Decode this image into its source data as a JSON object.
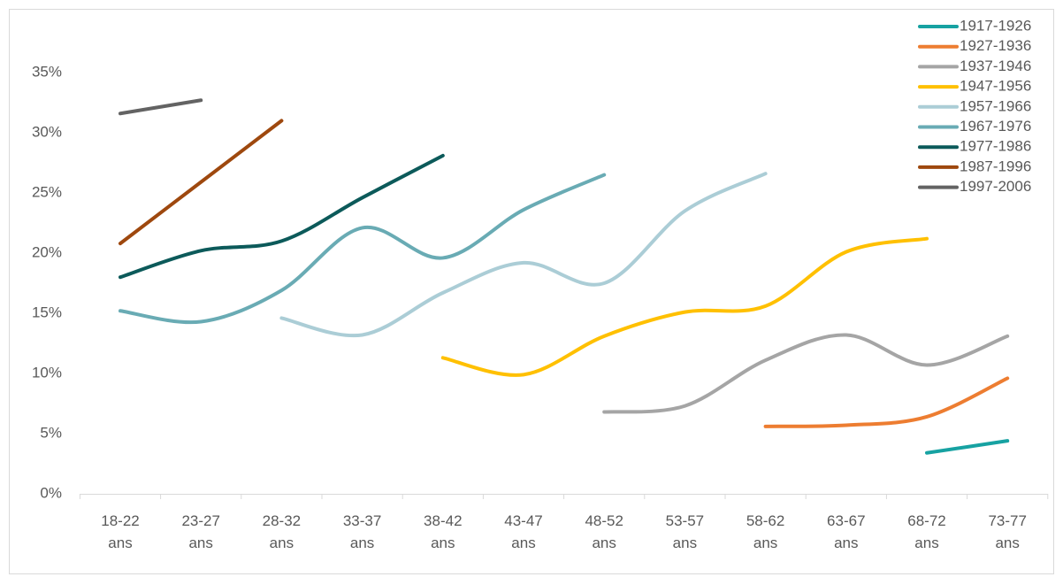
{
  "chart_data": {
    "type": "line",
    "smooth": true,
    "categories": [
      "18-22 ans",
      "23-27 ans",
      "28-32 ans",
      "33-37 ans",
      "38-42 ans",
      "43-47 ans",
      "48-52 ans",
      "53-57 ans",
      "58-62 ans",
      "63-67 ans",
      "68-72 ans",
      "73-77 ans"
    ],
    "series": [
      {
        "name": "1917-1926",
        "color": "#17a2a2",
        "values": [
          null,
          null,
          null,
          null,
          null,
          null,
          null,
          null,
          null,
          null,
          3.4,
          4.4
        ]
      },
      {
        "name": "1927-1936",
        "color": "#ed7d31",
        "values": [
          null,
          null,
          null,
          null,
          null,
          null,
          null,
          null,
          5.6,
          5.7,
          6.4,
          9.6
        ]
      },
      {
        "name": "1937-1946",
        "color": "#a5a5a5",
        "values": [
          null,
          null,
          null,
          null,
          null,
          null,
          6.8,
          7.3,
          11.1,
          13.2,
          10.7,
          13.1
        ]
      },
      {
        "name": "1947-1956",
        "color": "#ffc000",
        "values": [
          null,
          null,
          null,
          null,
          11.3,
          9.9,
          13.1,
          15.1,
          15.6,
          20.1,
          21.2,
          null
        ]
      },
      {
        "name": "1957-1966",
        "color": "#abcdd6",
        "values": [
          null,
          null,
          14.6,
          13.2,
          16.7,
          19.2,
          17.5,
          23.5,
          26.6,
          null,
          null,
          null
        ]
      },
      {
        "name": "1967-1976",
        "color": "#69abb4",
        "values": [
          15.2,
          14.3,
          16.9,
          22.1,
          19.6,
          23.6,
          26.5,
          null,
          null,
          null,
          null,
          null
        ]
      },
      {
        "name": "1977-1986",
        "color": "#0c5a5a",
        "values": [
          18.0,
          20.2,
          21.0,
          24.6,
          28.1,
          null,
          null,
          null,
          null,
          null,
          null,
          null
        ]
      },
      {
        "name": "1987-1996",
        "color": "#9e480e",
        "values": [
          20.8,
          25.9,
          31.0,
          null,
          null,
          null,
          null,
          null,
          null,
          null,
          null,
          null
        ]
      },
      {
        "name": "1997-2006",
        "color": "#636363",
        "values": [
          31.6,
          32.7,
          null,
          null,
          null,
          null,
          null,
          null,
          null,
          null,
          null,
          null
        ]
      }
    ],
    "ylim": [
      0,
      40
    ],
    "yticks": [
      {
        "value": 0,
        "label": "0%"
      },
      {
        "value": 5,
        "label": "5%"
      },
      {
        "value": 10,
        "label": "10%"
      },
      {
        "value": 15,
        "label": "15%"
      },
      {
        "value": 20,
        "label": "20%"
      },
      {
        "value": 25,
        "label": "25%"
      },
      {
        "value": 30,
        "label": "30%"
      },
      {
        "value": 35,
        "label": "35%"
      }
    ],
    "grid": false,
    "legend": "top-right"
  }
}
